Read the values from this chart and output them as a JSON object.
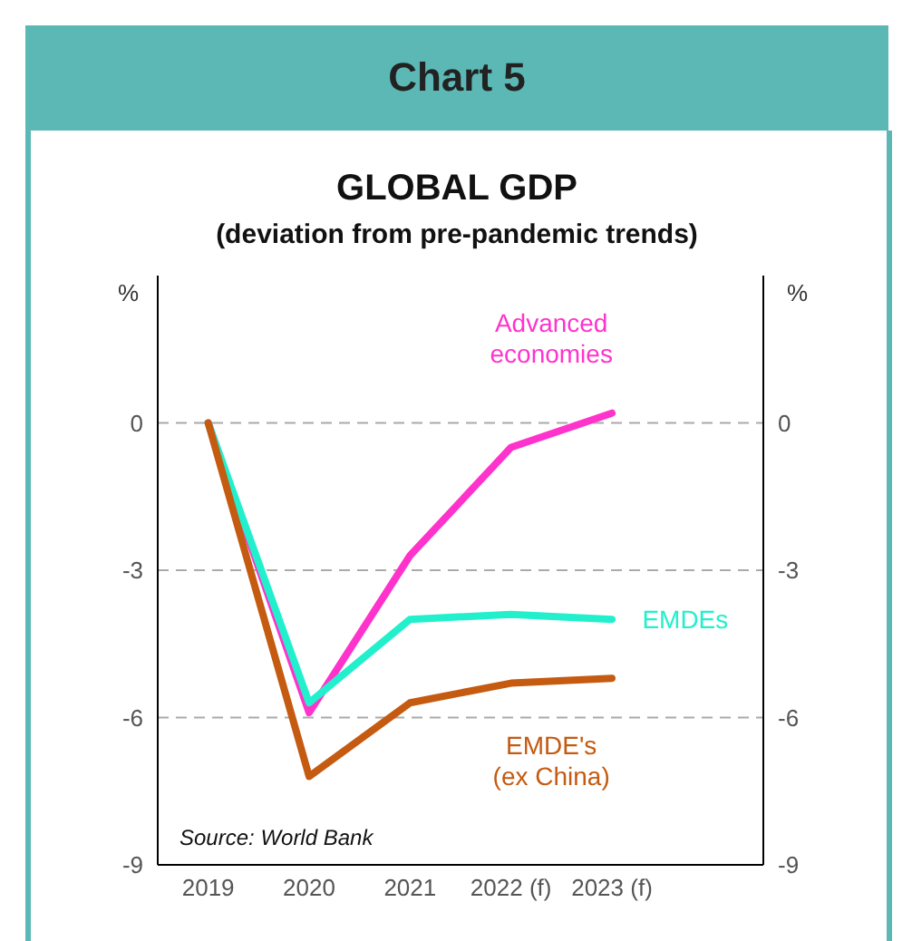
{
  "chart_data": {
    "type": "line",
    "title": "Chart 5",
    "subtitle": "GLOBAL GDP",
    "ylabel": "%",
    "y2label": "%",
    "categories": [
      "2019",
      "2020",
      "2021",
      "2022 (f)",
      "2023 (f)"
    ],
    "series": [
      {
        "name": "Advanced economies",
        "color": "#ff33cc",
        "values": [
          0,
          -5.9,
          -2.7,
          -0.5,
          0.2
        ]
      },
      {
        "name": "EMDEs",
        "color": "#22f0cc",
        "values": [
          0,
          -5.7,
          -4.0,
          -3.9,
          -4.0
        ]
      },
      {
        "name": "EMDE's (ex China)",
        "color": "#c55a11",
        "values": [
          0,
          -7.2,
          -5.7,
          -5.3,
          -5.2
        ]
      }
    ],
    "ylim": [
      -9,
      3
    ],
    "yticks": [
      -9,
      -6,
      -3,
      0
    ],
    "y2lim": [
      -9,
      3
    ],
    "y2ticks": [
      -9,
      -6,
      -3,
      0
    ],
    "grid": "y",
    "legend": false,
    "marker": "none",
    "line_style": "solid",
    "annotations": [
      "(deviation from pre-pandemic trends)",
      "Source: World Bank"
    ]
  }
}
